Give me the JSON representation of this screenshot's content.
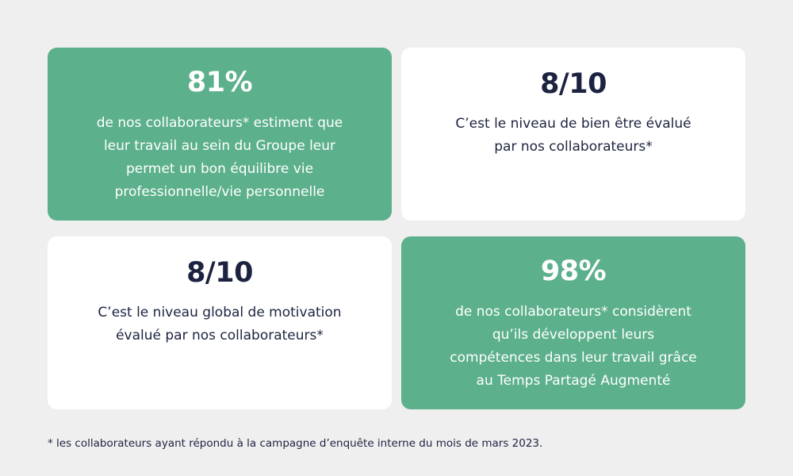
{
  "cards": [
    {
      "stat": "81%",
      "text": "de nos collaborateurs* estiment que\nleur travail au sein du Groupe leur\npermet un bon équilibre vie\nprofessionnelle/vie personnelle",
      "color": "#5cb08c"
    },
    {
      "stat": "8/10",
      "text": "C’est le niveau de bien être évalué\npar nos collaborateurs*",
      "color": "#ffffff"
    },
    {
      "stat": "8/10",
      "text": "C’est le niveau global de motivation\névalué par nos collaborateurs*",
      "color": "#ffffff"
    },
    {
      "stat": "98%",
      "text": "de nos collaborateurs* considèrent\nqu’ils développent leurs\ncompétences dans leur travail grâce\nau Temps Partagé Augmenté",
      "color": "#5cb08c"
    }
  ],
  "footnote": "* les collaborateurs ayant répondu à la campagne d’enquête interne du mois de mars 2023.",
  "colors": {
    "background": "#efefef",
    "green": "#5cb08c",
    "text_dark": "#1c2340"
  }
}
